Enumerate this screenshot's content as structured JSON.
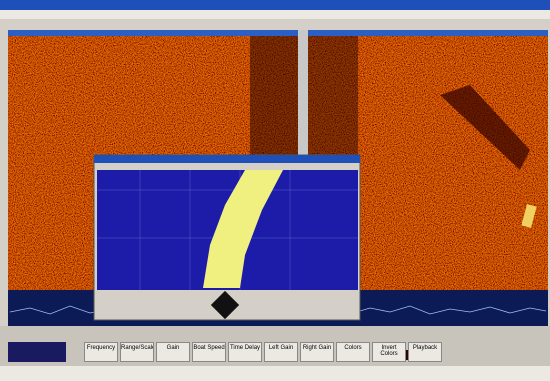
{
  "toolbar": {
    "buttons": [
      "Frequency",
      "Range/Scale",
      "Gain",
      "Boat Speed",
      "Time Delay",
      "Left Gain",
      "Right Gain",
      "Colors",
      "Invert Colors",
      "Playback"
    ]
  }
}
